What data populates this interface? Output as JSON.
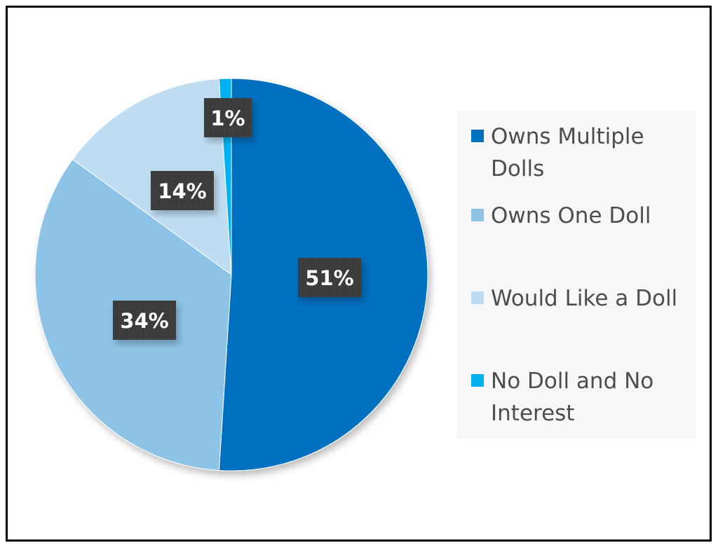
{
  "chart_data": {
    "type": "pie",
    "slices": [
      {
        "name": "Owns Multiple Dolls",
        "value": 51,
        "label": "51%",
        "color": "#0070C0"
      },
      {
        "name": "Owns One Doll",
        "value": 34,
        "label": "34%",
        "color": "#8DC3E7"
      },
      {
        "name": "Would Like a Doll",
        "value": 14,
        "label": "14%",
        "color": "#BFDDF2"
      },
      {
        "name": "No Doll and No Interest",
        "value": 1,
        "label": "1%",
        "color": "#00B0F0"
      }
    ],
    "legend_placement": "right",
    "data_label_style": {
      "background": "#3b3b3b",
      "text_color": "#ffffff"
    }
  }
}
